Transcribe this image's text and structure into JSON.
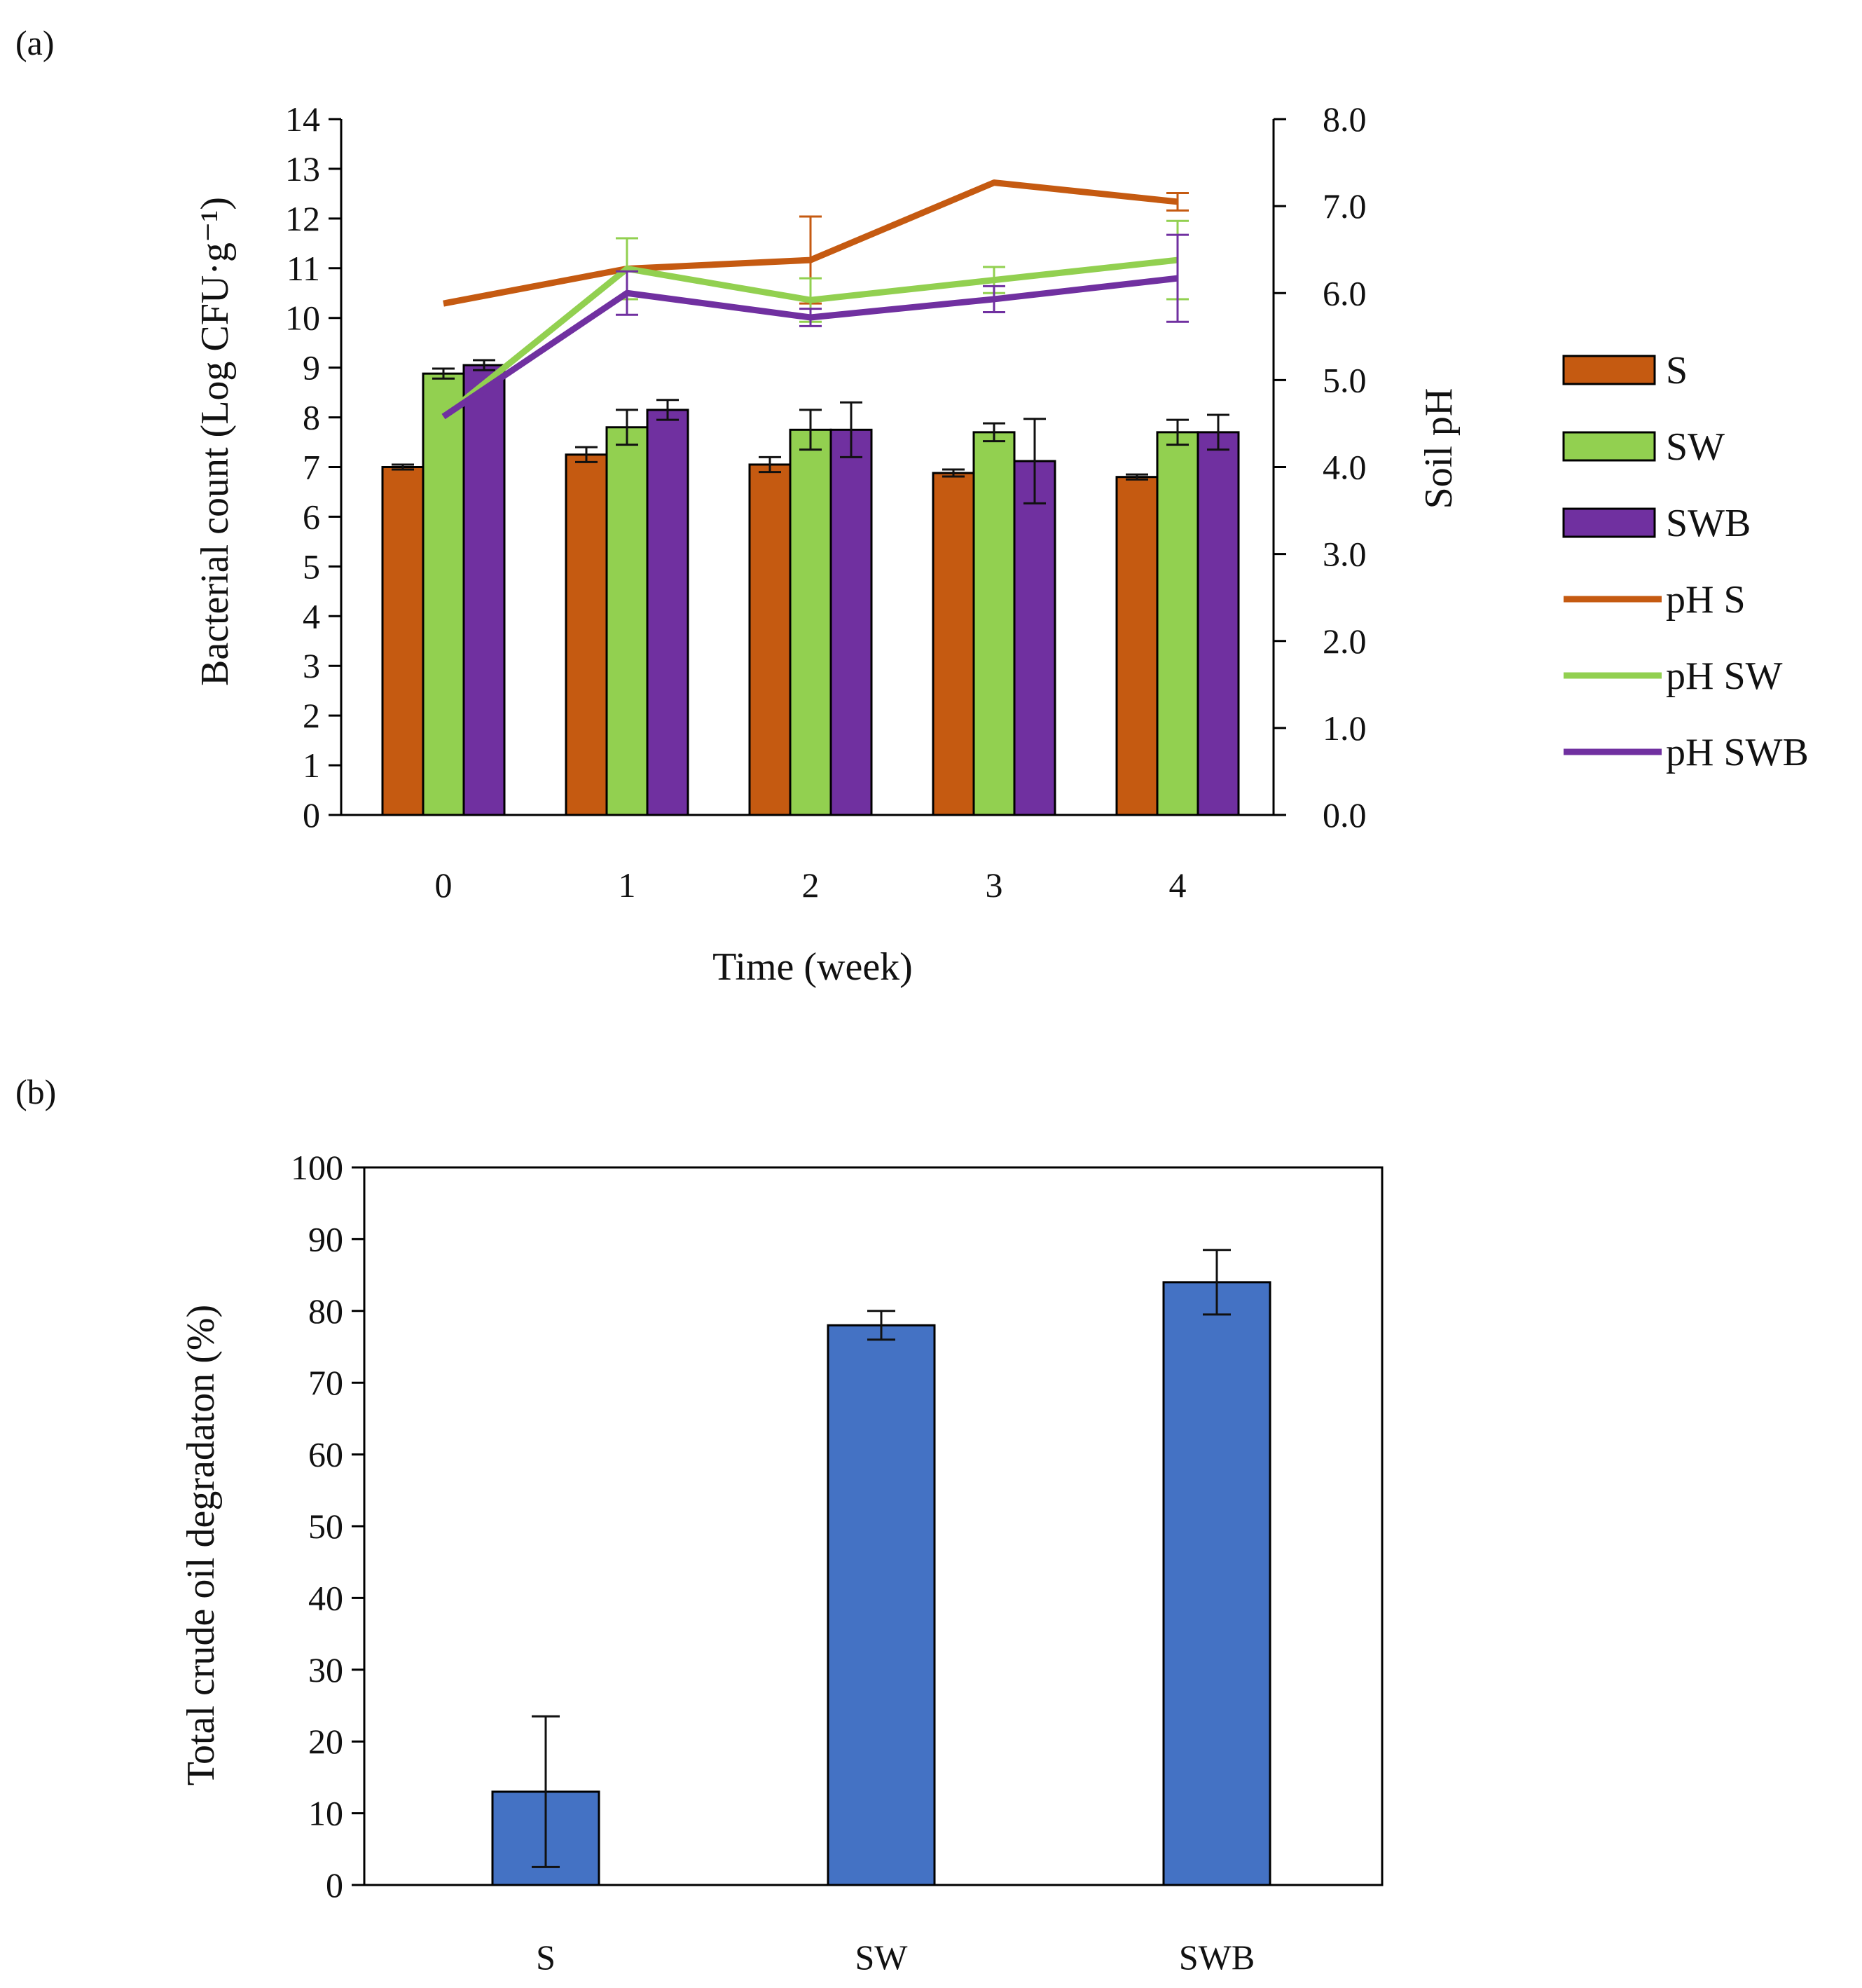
{
  "chart_data": [
    {
      "panel_label": "(a)",
      "type": "bar",
      "xlabel": "Time (week)",
      "ylabel": "Bacterial count  (Log CFU·g⁻¹)",
      "y2label": "Soil pH",
      "categories": [
        "0",
        "1",
        "2",
        "3",
        "4"
      ],
      "ylim": [
        0,
        14
      ],
      "y_ticks": [
        "0",
        "1",
        "2",
        "3",
        "4",
        "5",
        "6",
        "7",
        "8",
        "9",
        "10",
        "11",
        "12",
        "13",
        "14"
      ],
      "y2lim": [
        0,
        8
      ],
      "y2_ticks": [
        "0.0",
        "1.0",
        "2.0",
        "3.0",
        "4.0",
        "5.0",
        "6.0",
        "7.0",
        "8.0"
      ],
      "series": [
        {
          "name": "S",
          "color": "#C55A11",
          "values": [
            7.0,
            7.25,
            7.05,
            6.88,
            6.8
          ],
          "errors": [
            0.05,
            0.15,
            0.15,
            0.07,
            0.05
          ]
        },
        {
          "name": "SW",
          "color": "#92D050",
          "values": [
            8.88,
            7.8,
            7.75,
            7.7,
            7.7
          ],
          "errors": [
            0.1,
            0.35,
            0.4,
            0.18,
            0.25
          ]
        },
        {
          "name": "SWB",
          "color": "#7030A0",
          "values": [
            9.05,
            8.15,
            7.75,
            7.12,
            7.7
          ],
          "errors": [
            0.1,
            0.2,
            0.55,
            0.85,
            0.35
          ]
        }
      ],
      "line_series": [
        {
          "name": "pH S",
          "color": "#C55A11",
          "values": [
            5.88,
            6.28,
            6.38,
            7.27,
            7.05
          ],
          "errors": [
            0.0,
            0.0,
            0.5,
            0.0,
            0.1
          ]
        },
        {
          "name": "pH SW",
          "color": "#92D050",
          "values": [
            4.58,
            6.28,
            5.92,
            6.15,
            6.38
          ],
          "errors": [
            0.0,
            0.35,
            0.25,
            0.15,
            0.45
          ]
        },
        {
          "name": "pH SWB",
          "color": "#7030A0",
          "values": [
            4.58,
            6.0,
            5.72,
            5.93,
            6.17
          ],
          "errors": [
            0.0,
            0.25,
            0.1,
            0.15,
            0.5
          ]
        }
      ]
    },
    {
      "panel_label": "(b)",
      "type": "bar",
      "xlabel": "",
      "ylabel": "Total crude oil degradaton (%)",
      "categories": [
        "S",
        "SW",
        "SWB"
      ],
      "ylim": [
        0,
        100
      ],
      "y_ticks": [
        "0",
        "10",
        "20",
        "30",
        "40",
        "50",
        "60",
        "70",
        "80",
        "90",
        "100"
      ],
      "series": [
        {
          "name": "Total crude oil degradation",
          "color": "#4472C4",
          "values": [
            13,
            78,
            84
          ],
          "errors": [
            10.5,
            2,
            4.5
          ]
        }
      ]
    }
  ]
}
